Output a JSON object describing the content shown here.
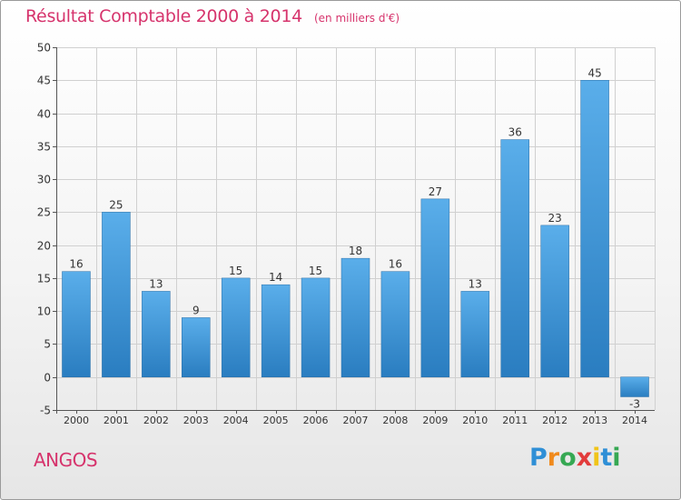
{
  "chart_data": {
    "type": "bar",
    "title": "Résultat Comptable 2000 à 2014",
    "subtitle": "(en milliers d'€)",
    "categories": [
      "2000",
      "2001",
      "2002",
      "2003",
      "2004",
      "2005",
      "2006",
      "2007",
      "2008",
      "2009",
      "2010",
      "2011",
      "2012",
      "2013",
      "2014"
    ],
    "values": [
      16,
      25,
      13,
      9,
      15,
      14,
      15,
      18,
      16,
      27,
      13,
      36,
      23,
      45,
      -3
    ],
    "ylim": [
      -5,
      50
    ],
    "yticks": [
      -5,
      0,
      5,
      10,
      15,
      20,
      25,
      30,
      35,
      40,
      45,
      50
    ],
    "grid": true,
    "bar_color_top": "#5aaeea",
    "bar_color_bottom": "#2a7dc0"
  },
  "commune": "ANGOS",
  "brand": {
    "letters": [
      "P",
      "r",
      "o",
      "x",
      "i",
      "t",
      "i"
    ],
    "colors": [
      "#2f8fd6",
      "#f08a1c",
      "#36a853",
      "#e23b3b",
      "#f0c419",
      "#2f8fd6",
      "#36a853"
    ]
  },
  "colors": {
    "accent": "#d6336c",
    "grid": "#d0d0d0"
  }
}
